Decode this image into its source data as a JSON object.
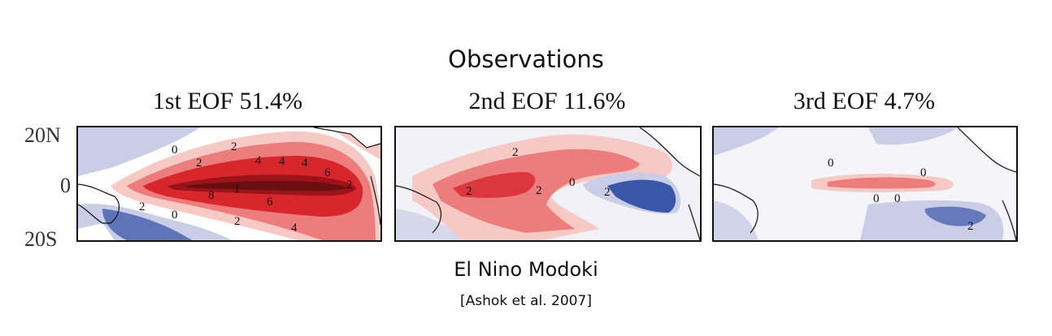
{
  "heading": "Observations",
  "panels": [
    {
      "title": "1st EOF 51.4%",
      "contour_labels": [
        "0",
        "2",
        "2",
        "4",
        "4",
        "4",
        "6",
        "8",
        "1",
        "6",
        "2",
        "2",
        "0",
        "4",
        "2"
      ]
    },
    {
      "title": "2nd EOF 11.6%",
      "contour_labels": [
        "2",
        "2",
        "2",
        "0",
        "2"
      ]
    },
    {
      "title": "3rd EOF 4.7%",
      "contour_labels": [
        "0",
        "0",
        "0",
        "0",
        "2"
      ]
    }
  ],
  "lat_labels": {
    "north": "20N",
    "equator": "0",
    "south": "20S"
  },
  "footer": {
    "title": "El Nino Modoki",
    "citation": "[Ashok et al. 2007]"
  },
  "colors": {
    "warm": "#d7262c",
    "warm_dark": "#6b0e12",
    "warm_light": "#f6c9c5",
    "cool": "#3a56a8",
    "cool_light": "#c9cde6"
  }
}
